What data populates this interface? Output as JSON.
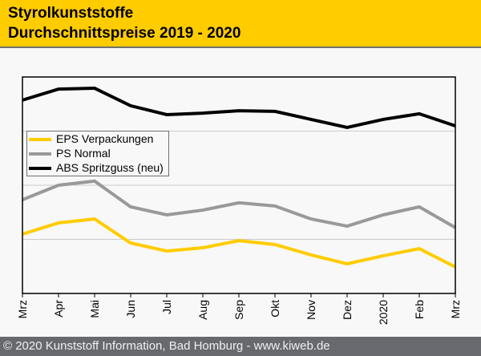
{
  "header": {
    "title_line1": "Styrolkunststoffe",
    "title_line2": "Durchschnittspreise 2019 - 2020"
  },
  "footer": {
    "text": "© 2020 Kunststoff Information, Bad Homburg - www.kiweb.de"
  },
  "colors": {
    "header_bg": "#ffcc00",
    "footer_bg": "#68696e",
    "eps": "#ffcc00",
    "ps": "#999999",
    "abs": "#000000"
  },
  "chart_data": {
    "type": "line",
    "title": "Styrolkunststoffe Durchschnittspreise 2019 - 2020",
    "xlabel": "",
    "ylabel": "",
    "y_axis_labels_shown": false,
    "grid": "horizontal",
    "gridline_count": 3,
    "ylim": [
      0,
      100
    ],
    "legend_position": "left",
    "categories": [
      "Mrz",
      "Apr",
      "Mai",
      "Jun",
      "Jul",
      "Aug",
      "Sep",
      "Okt",
      "Nov",
      "Dez",
      "2020",
      "Feb",
      "Mrz"
    ],
    "series": [
      {
        "name": "EPS Verpackungen",
        "color": "#ffcc00",
        "values": [
          27.4,
          32.6,
          34.4,
          23.3,
          19.6,
          21.1,
          24.4,
          22.6,
          17.8,
          13.7,
          17.4,
          20.7,
          12.2
        ]
      },
      {
        "name": "PS Normal",
        "color": "#999999",
        "values": [
          43.3,
          50.0,
          51.9,
          40.0,
          36.3,
          38.5,
          41.9,
          40.4,
          34.4,
          31.1,
          36.3,
          40.0,
          30.4
        ]
      },
      {
        "name": "ABS Spritzguss (neu)",
        "color": "#000000",
        "values": [
          89.3,
          94.4,
          94.8,
          86.7,
          82.6,
          83.3,
          84.4,
          84.1,
          80.4,
          76.7,
          80.4,
          83.0,
          77.4
        ]
      }
    ]
  }
}
